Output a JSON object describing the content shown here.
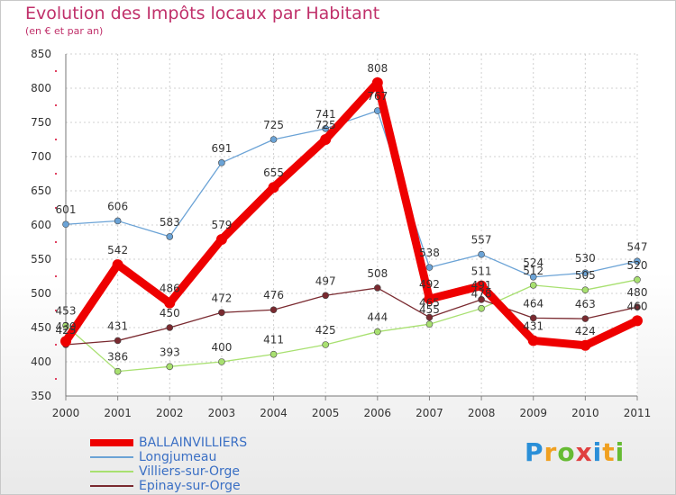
{
  "chart_data": {
    "type": "line",
    "title": "Evolution des Impôts locaux par Habitant",
    "subtitle": "(en € et par an)",
    "xlabel": "",
    "ylabel": "",
    "ylim": [
      350,
      850
    ],
    "yticks": [
      "350",
      "400",
      "450",
      "500",
      "550",
      "600",
      "650",
      "700",
      "750",
      "800",
      "850"
    ],
    "categories": [
      "2000",
      "2001",
      "2002",
      "2003",
      "2004",
      "2005",
      "2006",
      "2007",
      "2008",
      "2009",
      "2010",
      "2011"
    ],
    "grid": true,
    "legend_position": "bottom-left",
    "series": [
      {
        "name": "BALLAINVILLIERS",
        "color": "#ee0000",
        "values": [
          430,
          542,
          486,
          579,
          655,
          725,
          808,
          492,
          511,
          431,
          424,
          460
        ],
        "labels": [
          "430",
          "542",
          "486",
          "579",
          "655",
          "725",
          "808",
          "492",
          "511",
          "431",
          "424",
          "460"
        ]
      },
      {
        "name": "Longjumeau",
        "color": "#6ba3d6",
        "values": [
          601,
          606,
          583,
          691,
          725,
          741,
          767,
          538,
          557,
          524,
          530,
          547
        ],
        "labels": [
          "601",
          "606",
          "583",
          "691",
          "725",
          "741",
          "767",
          "538",
          "557",
          "524",
          "530",
          "547"
        ]
      },
      {
        "name": "Villiers-sur-Orge",
        "color": "#a8e070",
        "values": [
          453,
          386,
          393,
          400,
          411,
          425,
          444,
          455,
          478,
          512,
          505,
          520
        ],
        "labels": [
          "453",
          "386",
          "393",
          "400",
          "411",
          "425",
          "444",
          "455",
          "478",
          "512",
          "505",
          "520"
        ]
      },
      {
        "name": "Epinay-sur-Orge",
        "color": "#7a2a30",
        "values": [
          425,
          431,
          450,
          472,
          476,
          497,
          508,
          465,
          491,
          464,
          463,
          480
        ],
        "labels": [
          "425",
          "431",
          "450",
          "472",
          "476",
          "497",
          "508",
          "465",
          "491",
          "464",
          "463",
          "480"
        ]
      }
    ]
  },
  "logo": {
    "letters": [
      "P",
      "r",
      "o",
      "x",
      "i",
      "t",
      "i"
    ],
    "colors": [
      "#2a8fd8",
      "#f0a020",
      "#66bb33",
      "#e04040",
      "#2a8fd8",
      "#f0a020",
      "#66bb33"
    ]
  }
}
